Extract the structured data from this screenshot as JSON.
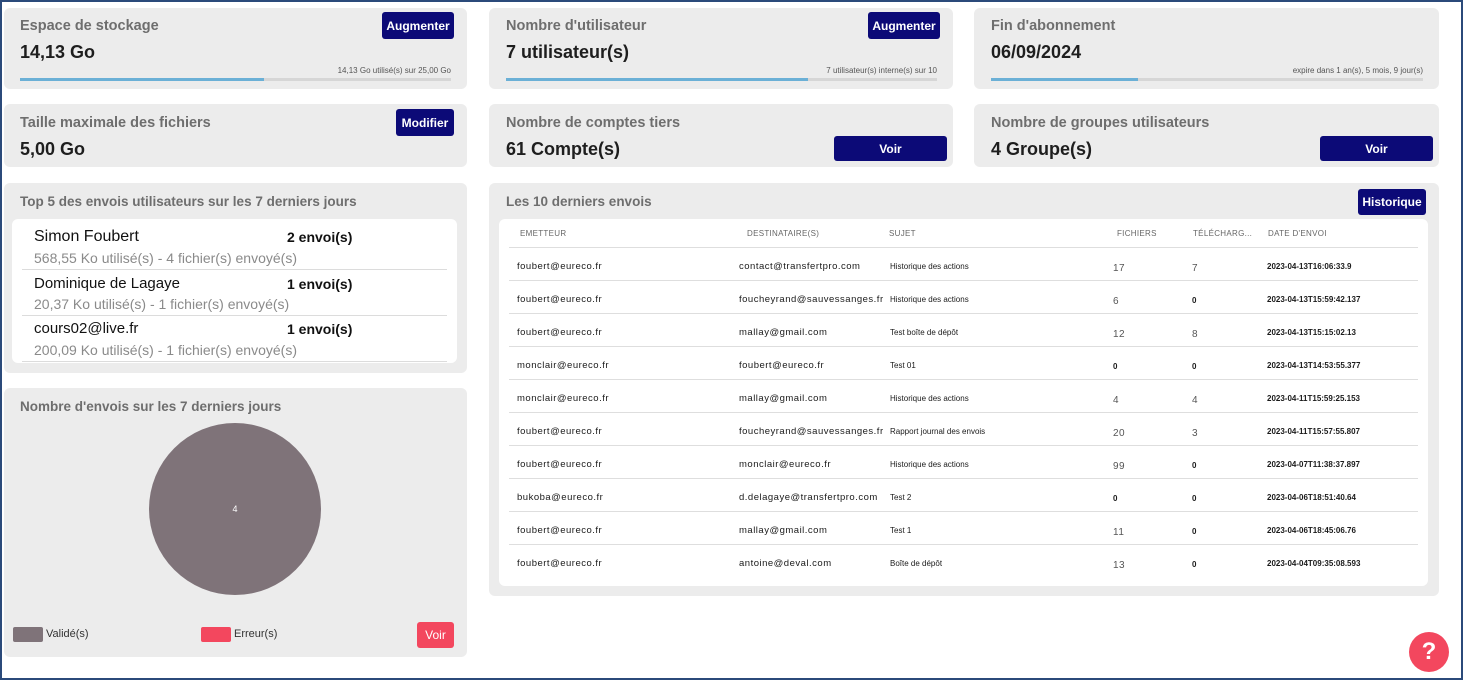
{
  "storage": {
    "title": "Espace de stockage",
    "value": "14,13 Go",
    "button": "Augmenter",
    "note": "14,13 Go utilisé(s) sur 25,00 Go",
    "progress": 0.565
  },
  "users": {
    "title": "Nombre d'utilisateur",
    "value": "7 utilisateur(s)",
    "button": "Augmenter",
    "note": "7 utilisateur(s) interne(s) sur 10",
    "progress": 0.7
  },
  "subscription": {
    "title": "Fin d'abonnement",
    "value": "06/09/2024",
    "note": "expire dans 1 an(s), 5 mois, 9 jour(s)",
    "progress": 0.34
  },
  "max_file": {
    "title": "Taille maximale des fichiers",
    "value": "5,00 Go",
    "button": "Modifier"
  },
  "third_party": {
    "title": "Nombre de comptes tiers",
    "value": "61 Compte(s)",
    "button": "Voir"
  },
  "groups": {
    "title": "Nombre de groupes utilisateurs",
    "value": "4 Groupe(s)",
    "button": "Voir"
  },
  "top_senders": {
    "title": "Top 5 des envois utilisateurs sur les 7 derniers jours",
    "items": [
      {
        "name": "Simon Foubert",
        "count": "2 envoi(s)",
        "details": "568,55 Ko utilisé(s) - 4 fichier(s) envoyé(s)"
      },
      {
        "name": "Dominique de Lagaye",
        "count": "1 envoi(s)",
        "details": "20,37 Ko utilisé(s) - 1 fichier(s) envoyé(s)"
      },
      {
        "name": "cours02@live.fr",
        "count": "1 envoi(s)",
        "details": "200,09 Ko utilisé(s) - 1 fichier(s) envoyé(s)"
      }
    ]
  },
  "sends_chart": {
    "title": "Nombre d'envois sur les 7 derniers jours",
    "button": "Voir",
    "colors": {
      "valid": "#7f7379",
      "error": "#f3475e"
    }
  },
  "chart_data": {
    "type": "pie",
    "title": "Nombre d'envois sur les 7 derniers jours",
    "labels": [
      "Validé(s)",
      "Erreur(s)"
    ],
    "values": [
      4,
      0
    ],
    "slice_labels": [
      "4",
      ""
    ],
    "legend": "bottom"
  },
  "recent": {
    "title": "Les 10 derniers envois",
    "button": "Historique",
    "headers": [
      "EMETTEUR",
      "DESTINATAIRE(S)",
      "SUJET",
      "FICHIERS",
      "TÉLÉCHARG...",
      "DATE D'ENVOI"
    ],
    "rows": [
      [
        "foubert@eureco.fr",
        "contact@transfertpro.com",
        "Historique des actions",
        "17",
        "7",
        "2023-04-13T16:06:33.9"
      ],
      [
        "foubert@eureco.fr",
        "foucheyrand@sauvessanges.fr",
        "Historique des actions",
        "6",
        "0",
        "2023-04-13T15:59:42.137"
      ],
      [
        "foubert@eureco.fr",
        "mallay@gmail.com",
        "Test boîte de dépôt",
        "12",
        "8",
        "2023-04-13T15:15:02.13"
      ],
      [
        "monclair@eureco.fr",
        "foubert@eureco.fr",
        "Test 01",
        "0",
        "0",
        "2023-04-13T14:53:55.377"
      ],
      [
        "monclair@eureco.fr",
        "mallay@gmail.com",
        "Historique des actions",
        "4",
        "4",
        "2023-04-11T15:59:25.153"
      ],
      [
        "foubert@eureco.fr",
        "foucheyrand@sauvessanges.fr",
        "Rapport journal des envois",
        "20",
        "3",
        "2023-04-11T15:57:55.807"
      ],
      [
        "foubert@eureco.fr",
        "monclair@eureco.fr",
        "Historique des actions",
        "99",
        "0",
        "2023-04-07T11:38:37.897"
      ],
      [
        "bukoba@eureco.fr",
        "d.delagaye@transfertpro.com",
        "Test 2",
        "0",
        "0",
        "2023-04-06T18:51:40.64"
      ],
      [
        "foubert@eureco.fr",
        "mallay@gmail.com",
        "Test 1",
        "11",
        "0",
        "2023-04-06T18:45:06.76"
      ],
      [
        "foubert@eureco.fr",
        "antoine@deval.com",
        "Boîte de dépôt",
        "13",
        "0",
        "2023-04-04T09:35:08.593"
      ]
    ]
  },
  "help": {
    "label": "?"
  }
}
